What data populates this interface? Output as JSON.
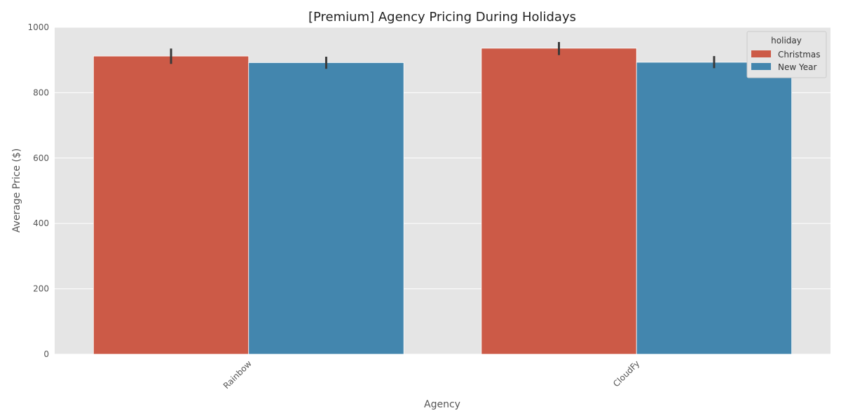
{
  "chart_data": {
    "type": "bar",
    "title": "[Premium] Agency Pricing During Holidays",
    "xlabel": "Agency",
    "ylabel": "Average Price ($)",
    "categories": [
      "Rainbow",
      "CloudFy"
    ],
    "ylim": [
      0,
      1000
    ],
    "yticks": [
      0,
      200,
      400,
      600,
      800,
      1000
    ],
    "grid": true,
    "legend": {
      "title": "holiday",
      "placement": "top-right"
    },
    "series": [
      {
        "name": "Christmas",
        "color": "#CC5A47",
        "values": [
          912,
          936
        ],
        "error_low": [
          888,
          915
        ],
        "error_high": [
          935,
          955
        ]
      },
      {
        "name": "New Year",
        "color": "#4386AE",
        "values": [
          892,
          893
        ],
        "error_low": [
          873,
          875
        ],
        "error_high": [
          910,
          912
        ]
      }
    ]
  }
}
